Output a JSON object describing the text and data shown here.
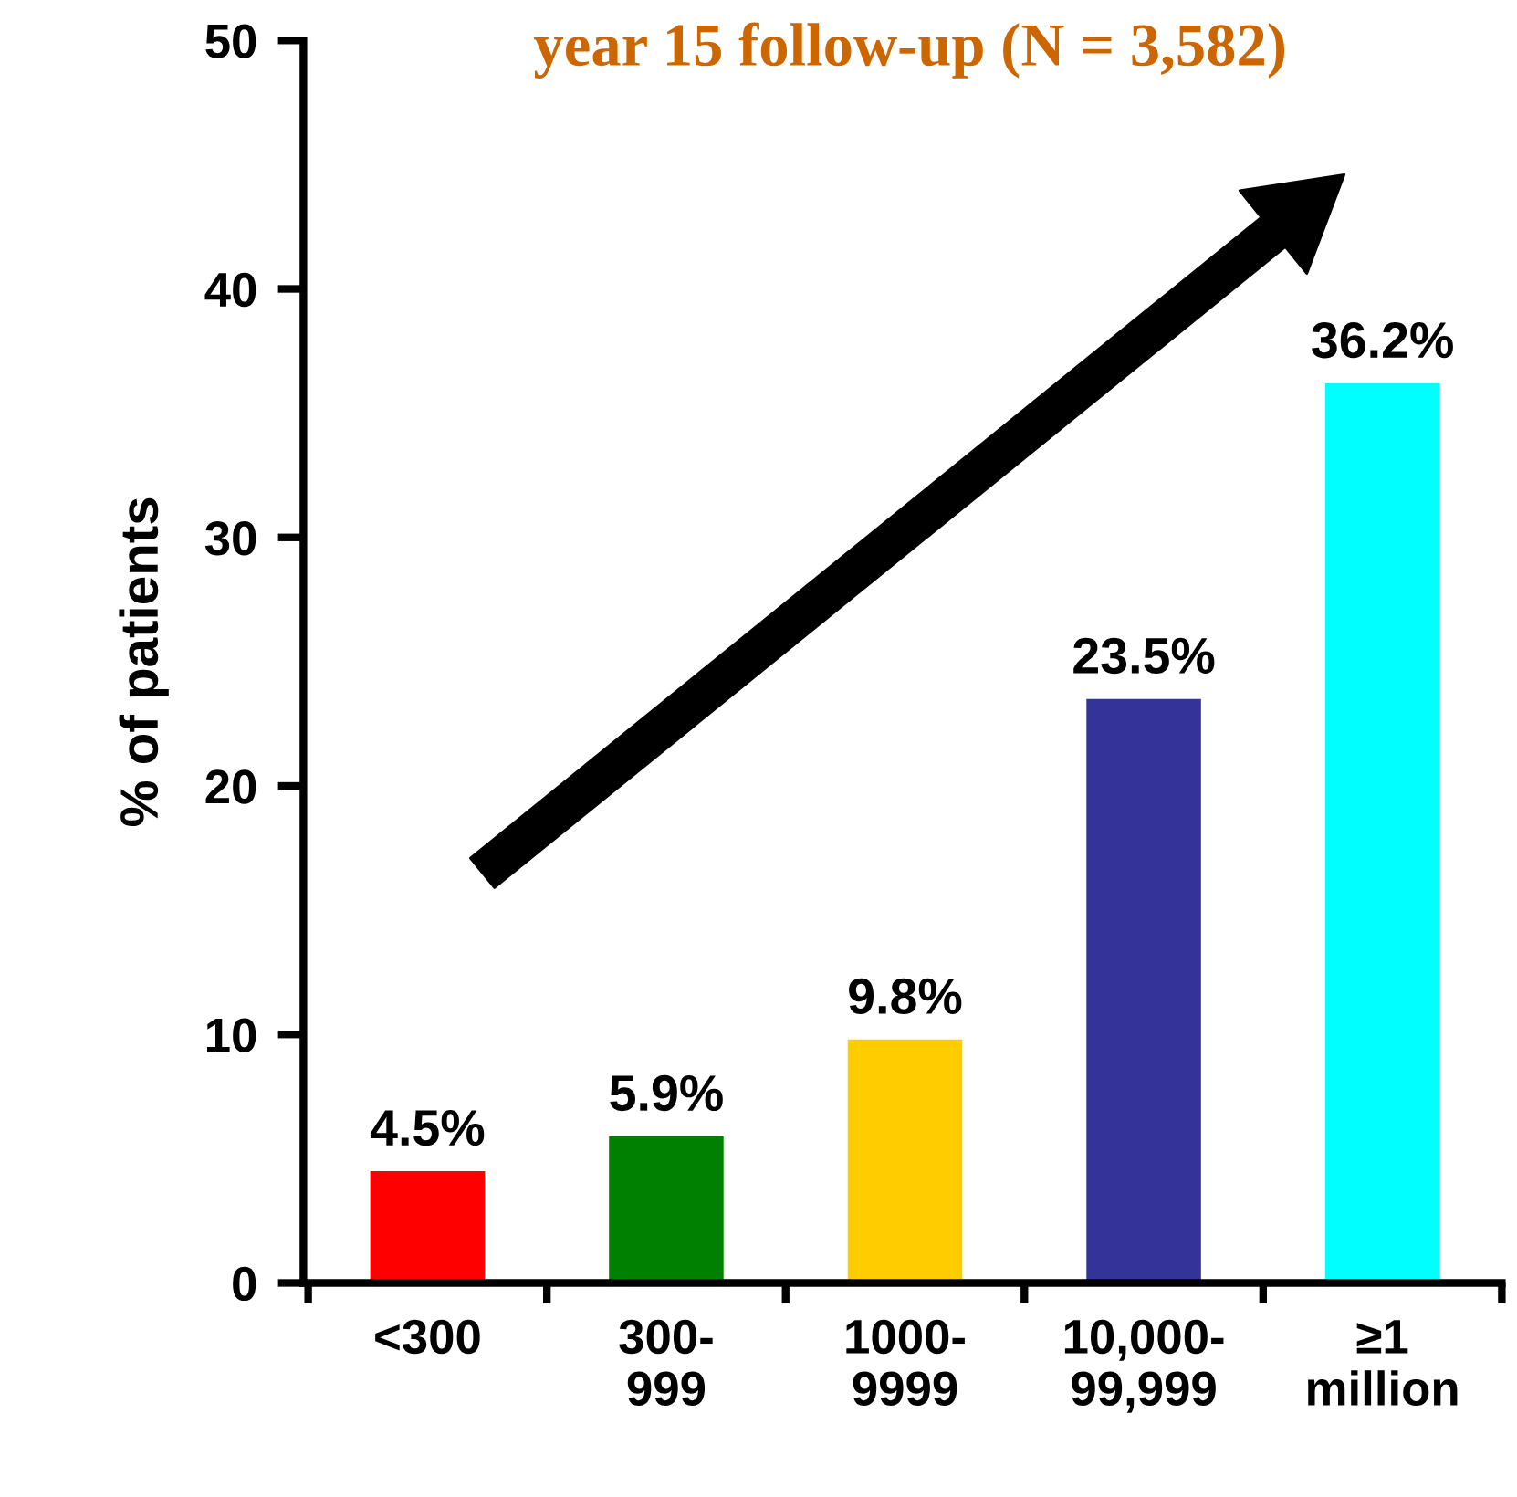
{
  "chart_data": {
    "type": "bar",
    "title": "year 15 follow-up (N = 3,582)",
    "ylabel": "% of patients",
    "categories": [
      "<300",
      "300-\n999",
      "1000-\n9999",
      "10,000-\n99,999",
      "≥1\nmillion"
    ],
    "values": [
      4.5,
      5.9,
      9.8,
      23.5,
      36.2
    ],
    "colors": [
      "#ff0000",
      "#008000",
      "#ffcc00",
      "#333399",
      "#00ffff"
    ],
    "value_labels": [
      "4.5%",
      "5.9%",
      "9.8%",
      "23.5%",
      "36.2%"
    ],
    "ylim": [
      0,
      50
    ],
    "yticks": [
      0,
      10,
      20,
      30,
      40,
      50
    ],
    "grid": false,
    "legend": false
  }
}
